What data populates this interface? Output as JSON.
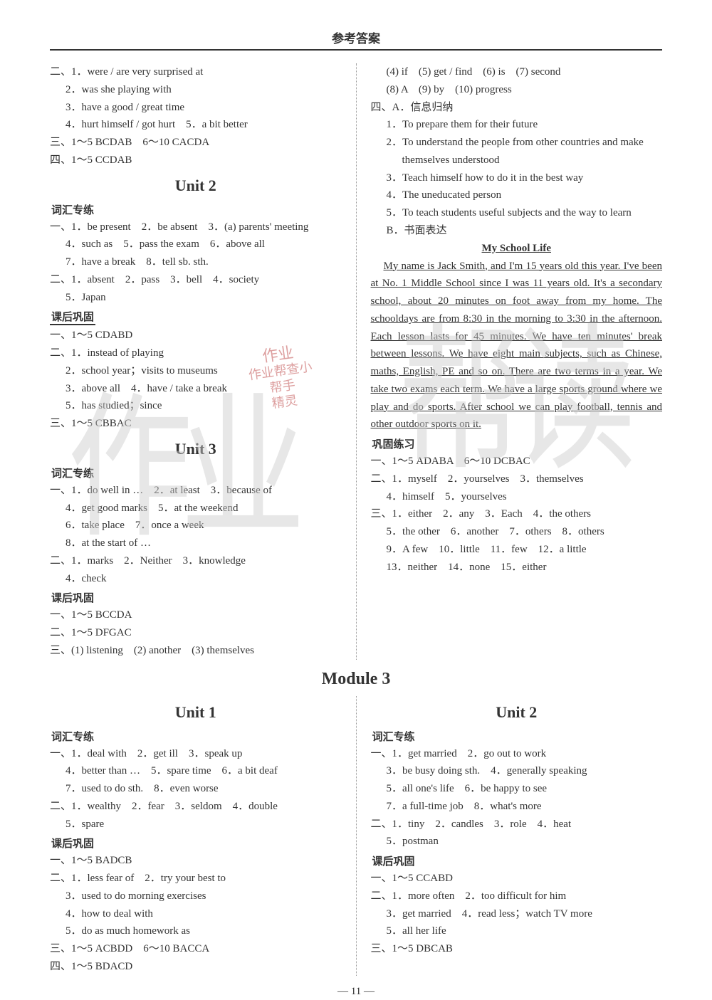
{
  "page": {
    "title": "参考答案",
    "number": "— 11 —"
  },
  "watermarks": {
    "wm1": "作业",
    "wm2": "帮读"
  },
  "stamp": {
    "l1": "作业",
    "l2": "作业帮查小帮手",
    "l3": "精灵"
  },
  "left": {
    "top": {
      "r1": "二、1．were / are very surprised at",
      "r2": "2．was she playing with",
      "r3": "3．have a good / great time",
      "r4": "4．hurt himself / got hurt　5．a bit better",
      "r5": "三、1～5 BCDAB　6～10 CACDA",
      "r6": "四、1～5 CCDAB"
    },
    "unit2": {
      "heading": "Unit 2",
      "sec1": "词汇专练",
      "l1": "一、1．be present　2．be absent　3．(a) parents' meeting",
      "l2": "4．such as　5．pass the exam　6．above all",
      "l3": "7．have a break　8．tell sb. sth.",
      "l4": "二、1．absent　2．pass　3．bell　4．society",
      "l5": "5．Japan",
      "sec2": "课后巩固",
      "l6": "一、1～5 CDABD",
      "l7": "二、1．instead of playing",
      "l8": "2．school year；visits to museums",
      "l9": "3．above all　4．have / take a break",
      "l10": "5．has studied；since",
      "l11": "三、1～5 CBBAC"
    },
    "unit3": {
      "heading": "Unit 3",
      "sec1": "词汇专练",
      "l1": "一、1．do well in …　2．at least　3．because of",
      "l2": "4．get good marks　5．at the weekend",
      "l3": "6．take place　7．once a week",
      "l4": "8．at the start of …",
      "l5": "二、1．marks　2．Neither　3．knowledge",
      "l6": "4．check",
      "sec2": "课后巩固",
      "l7": "一、1～5 BCCDA",
      "l8": "二、1～5 DFGAC",
      "l9": "三、(1) listening　(2) another　(3) themselves"
    },
    "m3u1": {
      "heading": "Unit 1",
      "sec1": "词汇专练",
      "l1": "一、1．deal with　2．get ill　3．speak up",
      "l2": "4．better than …　5．spare time　6．a bit deaf",
      "l3": "7．used to do sth.　8．even worse",
      "l4": "二、1．wealthy　2．fear　3．seldom　4．double",
      "l5": "5．spare",
      "sec2": "课后巩固",
      "l6": "一、1～5 BADCB",
      "l7": "二、1．less fear of　2．try your best to",
      "l8": "3．used to do morning exercises",
      "l9": "4．how to deal with",
      "l10": "5．do as much homework as",
      "l11": "三、1～5 ACBDD　6～10 BACCA",
      "l12": "四、1～5 BDACD"
    }
  },
  "right": {
    "top": {
      "r1": "(4) if　(5) get / find　(6) is　(7) second",
      "r2": "(8) A　(9) by　(10) progress",
      "r3": "四、A．信息归纳",
      "r4": "1．To prepare them for their future",
      "r5": "2．To understand the people from other countries and make themselves understood",
      "r6": "3．Teach himself how to do it in the best way",
      "r7": "4．The uneducated person",
      "r8": "5．To teach students useful subjects and the way to learn",
      "r9": "B．书面表达",
      "essayTitle": "My School Life",
      "essay": "My name is Jack Smith, and I'm 15 years old this year. I've been at No. 1 Middle School since I was 11 years old. It's a secondary school, about 20 minutes on foot away from my home. The schooldays are from 8:30 in the morning to 3:30 in the afternoon. Each lesson lasts for 45 minutes. We have ten minutes' break between lessons. We have eight main subjects, such as Chinese, maths, English, PE and so on. There are two terms in a year. We take two exams each term. We have a large sports ground where we play and do sports. After school we can play football, tennis and other outdoor sports on it."
    },
    "gonggu": {
      "sec": "巩固练习",
      "l1": "一、1～5 ADABA　6～10 DCBAC",
      "l2": "二、1．myself　2．yourselves　3．themselves",
      "l3": "4．himself　5．yourselves",
      "l4": "三、1．either　2．any　3．Each　4．the others",
      "l5": "5．the other　6．another　7．others　8．others",
      "l6": "9．A few　10．little　11．few　12．a little",
      "l7": "13．neither　14．none　15．either"
    },
    "m3u2": {
      "heading": "Unit 2",
      "sec1": "词汇专练",
      "l1": "一、1．get married　2．go out to work",
      "l2": "3．be busy doing sth.　4．generally speaking",
      "l3": "5．all one's life　6．be happy to see",
      "l4": "7．a full-time job　8．what's more",
      "l5": "二、1．tiny　2．candles　3．role　4．heat",
      "l6": "5．postman",
      "sec2": "课后巩固",
      "l7": "一、1～5 CCABD",
      "l8": "二、1．more often　2．too difficult for him",
      "l9": "3．get married　4．read less；watch TV more",
      "l10": "5．all her life",
      "l11": "三、1～5 DBCAB"
    }
  },
  "module3": "Module 3"
}
